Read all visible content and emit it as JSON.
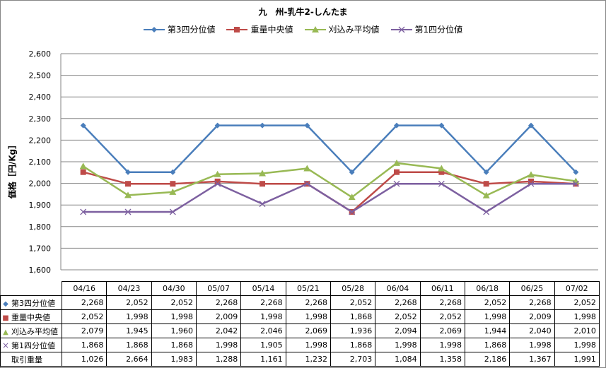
{
  "chart_data": {
    "type": "line",
    "title": "九　州-乳牛2-しんたま",
    "ylabel": "価格［円/Kg］",
    "xlabel": "",
    "ylim": [
      1600,
      2600
    ],
    "yticks": [
      "1,600",
      "1,700",
      "1,800",
      "1,900",
      "2,000",
      "2,100",
      "2,200",
      "2,300",
      "2,400",
      "2,500",
      "2,600"
    ],
    "grid": true,
    "legend_position": "top",
    "categories": [
      "04/16",
      "04/23",
      "04/30",
      "05/07",
      "05/14",
      "05/21",
      "05/28",
      "06/04",
      "06/11",
      "06/18",
      "06/25",
      "07/02"
    ],
    "series": [
      {
        "name": "第3四分位値",
        "color": "#4a7ebb",
        "marker": "diamond",
        "values": [
          2268,
          2052,
          2052,
          2268,
          2268,
          2268,
          2052,
          2268,
          2268,
          2052,
          2268,
          2052
        ]
      },
      {
        "name": "重量中央値",
        "color": "#be4b48",
        "marker": "square",
        "values": [
          2052,
          1998,
          1998,
          2009,
          1998,
          1998,
          1868,
          2052,
          2052,
          1998,
          2009,
          1998
        ]
      },
      {
        "name": "刈込み平均値",
        "color": "#98b954",
        "marker": "triangle",
        "values": [
          2079,
          1945,
          1960,
          2042,
          2046,
          2069,
          1936,
          2094,
          2069,
          1944,
          2040,
          2010
        ]
      },
      {
        "name": "第1四分位値",
        "color": "#7d60a0",
        "marker": "x",
        "values": [
          1868,
          1868,
          1868,
          1998,
          1905,
          1998,
          1868,
          1998,
          1998,
          1868,
          1998,
          1998
        ]
      }
    ],
    "table_rows": [
      {
        "label": "第3四分位値",
        "marker": "diamond",
        "color": "#4a7ebb",
        "cells": [
          "2,268",
          "2,052",
          "2,052",
          "2,268",
          "2,268",
          "2,268",
          "2,052",
          "2,268",
          "2,268",
          "2,052",
          "2,268",
          "2,052"
        ]
      },
      {
        "label": "重量中央値",
        "marker": "square",
        "color": "#be4b48",
        "cells": [
          "2,052",
          "1,998",
          "1,998",
          "2,009",
          "1,998",
          "1,998",
          "1,868",
          "2,052",
          "2,052",
          "1,998",
          "2,009",
          "1,998"
        ]
      },
      {
        "label": "刈込み平均値",
        "marker": "triangle",
        "color": "#98b954",
        "cells": [
          "2,079",
          "1,945",
          "1,960",
          "2,042",
          "2,046",
          "2,069",
          "1,936",
          "2,094",
          "2,069",
          "1,944",
          "2,040",
          "2,010"
        ]
      },
      {
        "label": "第1四分位値",
        "marker": "x",
        "color": "#7d60a0",
        "cells": [
          "1,868",
          "1,868",
          "1,868",
          "1,998",
          "1,905",
          "1,998",
          "1,868",
          "1,998",
          "1,998",
          "1,868",
          "1,998",
          "1,998"
        ]
      },
      {
        "label": "取引重量",
        "marker": "",
        "color": "",
        "cells": [
          "1,026",
          "2,664",
          "1,983",
          "1,288",
          "1,161",
          "1,232",
          "2,703",
          "1,084",
          "1,358",
          "2,186",
          "1,367",
          "1,991"
        ]
      }
    ]
  }
}
